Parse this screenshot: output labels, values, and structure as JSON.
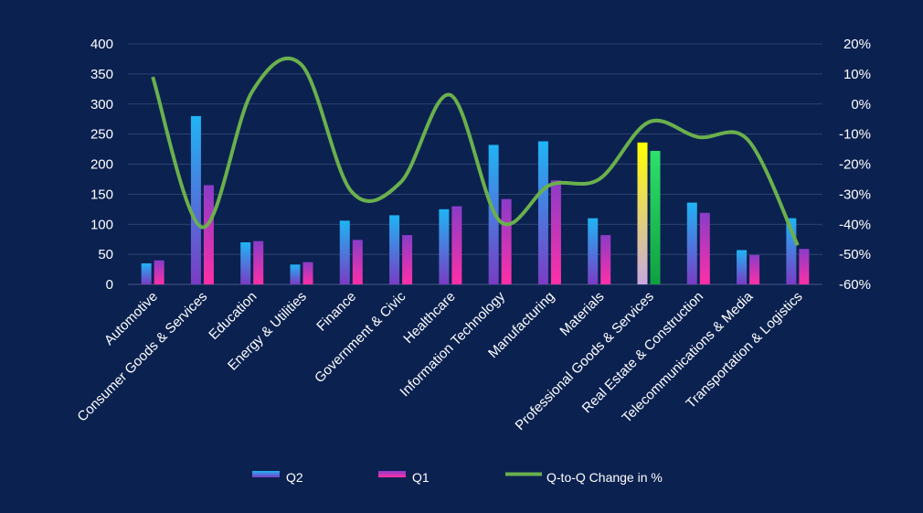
{
  "chart_data": {
    "type": "bar",
    "categories": [
      "Automotive",
      "Consumer Goods & Services",
      "Education",
      "Energy & Utilities",
      "Finance",
      "Government & Civic",
      "Healthcare",
      "Information Technology",
      "Manufacturing",
      "Materials",
      "Professional Goods & Services",
      "Real Estate & Construction",
      "Telecommunications & Media",
      "Transportation & Logistics"
    ],
    "series": [
      {
        "name": "Q2",
        "type": "bar",
        "axis": "left",
        "values": [
          35,
          280,
          70,
          33,
          106,
          115,
          125,
          232,
          238,
          110,
          236,
          136,
          57,
          110
        ]
      },
      {
        "name": "Q1",
        "type": "bar",
        "axis": "left",
        "values": [
          40,
          165,
          72,
          37,
          74,
          82,
          130,
          142,
          173,
          82,
          222,
          119,
          49,
          59
        ]
      },
      {
        "name": "Q-to-Q Change in %",
        "type": "line",
        "axis": "right",
        "values": [
          9,
          -41,
          4,
          13,
          -29,
          -26,
          3,
          -39,
          -27,
          -25,
          -6,
          -11,
          -12,
          -47
        ]
      }
    ],
    "y_left": {
      "min": 0,
      "max": 400,
      "ticks": [
        "0",
        "50",
        "100",
        "150",
        "200",
        "250",
        "300",
        "350",
        "400"
      ]
    },
    "y_right": {
      "min": -60,
      "max": 20,
      "ticks": [
        "-60%",
        "-50%",
        "-40%",
        "-30%",
        "-20%",
        "-10%",
        "0%",
        "10%",
        "20%"
      ]
    },
    "title": "",
    "xlabel": "",
    "ylabel": "",
    "grid": true,
    "legend_position": "bottom",
    "highlight_category": "Professional Goods & Services",
    "colors": {
      "background": "#0b2150",
      "grid": "#3a4d7a",
      "q2_top": "#1fb4f5",
      "q2_bottom": "#7a3cc4",
      "q1_top": "#8a3cc8",
      "q1_bottom": "#ff2fa8",
      "highlight_top": "#ffff00",
      "highlight_bottom": "#c8a8e0",
      "highlight_q1_top": "#2ee06a",
      "highlight_q1_bottom": "#0fa040",
      "line": "#6ab04c",
      "text": "#ffffff"
    }
  }
}
